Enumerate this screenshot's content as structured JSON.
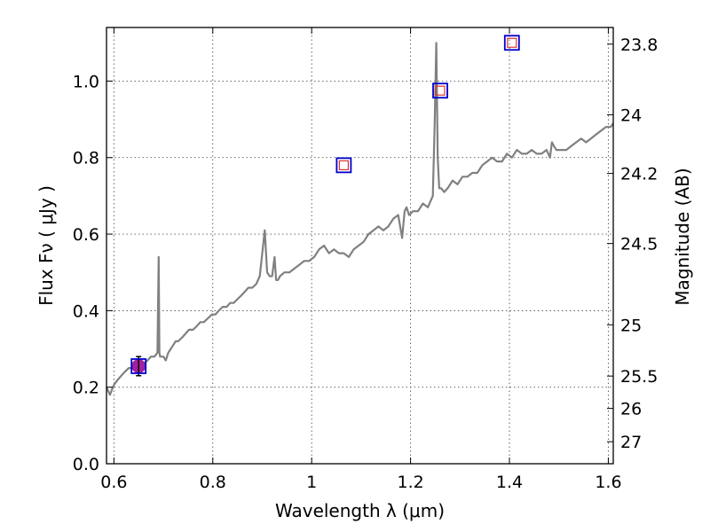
{
  "chart_data": {
    "type": "line",
    "xlabel": "Wavelength  λ (μm)",
    "ylabel": "Flux  Fν  ( μJy )",
    "y2label": "Magnitude (AB)",
    "xlim": [
      0.585,
      1.61
    ],
    "ylim": [
      0.0,
      1.14
    ],
    "x_ticks": [
      0.6,
      0.8,
      1.0,
      1.2,
      1.4,
      1.6
    ],
    "x_tick_labels": [
      "0.6",
      "0.8",
      "1",
      "1.2",
      "1.4",
      "1.6"
    ],
    "y_ticks": [
      0.0,
      0.2,
      0.4,
      0.6,
      0.8,
      1.0
    ],
    "y_tick_labels": [
      "0.0",
      "0.2",
      "0.4",
      "0.6",
      "0.8",
      "1.0"
    ],
    "y2_ticks": [
      {
        "label": "23.8",
        "mag": 23.8
      },
      {
        "label": "24",
        "mag": 24.0
      },
      {
        "label": "24.2",
        "mag": 24.2
      },
      {
        "label": "24.5",
        "mag": 24.5
      },
      {
        "label": "25",
        "mag": 25.0
      },
      {
        "label": "25.5",
        "mag": 25.5
      },
      {
        "label": "26",
        "mag": 26.0
      },
      {
        "label": "27",
        "mag": 27.0
      }
    ],
    "grid": true,
    "colors": {
      "spectrum": "#808080",
      "photometry_edge": "#0000cc",
      "photometry_inner": "#dd3333",
      "measured_fill": "#a020a0",
      "errorbar": "#000000"
    },
    "spectrum": {
      "x": [
        0.585,
        0.592,
        0.598,
        0.602,
        0.608,
        0.615,
        0.622,
        0.63,
        0.638,
        0.645,
        0.652,
        0.66,
        0.668,
        0.675,
        0.682,
        0.688,
        0.6905,
        0.692,
        0.6935,
        0.696,
        0.7,
        0.705,
        0.71,
        0.715,
        0.72,
        0.725,
        0.73,
        0.738,
        0.745,
        0.752,
        0.76,
        0.768,
        0.775,
        0.782,
        0.79,
        0.798,
        0.805,
        0.812,
        0.82,
        0.828,
        0.835,
        0.842,
        0.85,
        0.858,
        0.865,
        0.872,
        0.88,
        0.888,
        0.895,
        0.9,
        0.905,
        0.91,
        0.915,
        0.92,
        0.925,
        0.928,
        0.932,
        0.936,
        0.945,
        0.955,
        0.965,
        0.975,
        0.985,
        0.995,
        1.005,
        1.015,
        1.025,
        1.035,
        1.045,
        1.055,
        1.065,
        1.075,
        1.085,
        1.095,
        1.105,
        1.115,
        1.125,
        1.135,
        1.145,
        1.155,
        1.165,
        1.175,
        1.183,
        1.188,
        1.192,
        1.197,
        1.205,
        1.215,
        1.225,
        1.235,
        1.245,
        1.249,
        1.252,
        1.255,
        1.258,
        1.262,
        1.268,
        1.275,
        1.285,
        1.295,
        1.305,
        1.315,
        1.325,
        1.335,
        1.345,
        1.355,
        1.365,
        1.375,
        1.385,
        1.395,
        1.405,
        1.415,
        1.425,
        1.435,
        1.445,
        1.455,
        1.465,
        1.475,
        1.482,
        1.486,
        1.49,
        1.495,
        1.505,
        1.515,
        1.525,
        1.535,
        1.545,
        1.555,
        1.565,
        1.575,
        1.585,
        1.595,
        1.605,
        1.61
      ],
      "y": [
        0.2,
        0.18,
        0.2,
        0.21,
        0.22,
        0.23,
        0.24,
        0.25,
        0.25,
        0.26,
        0.25,
        0.26,
        0.27,
        0.28,
        0.28,
        0.29,
        0.54,
        0.29,
        0.28,
        0.28,
        0.28,
        0.27,
        0.29,
        0.3,
        0.31,
        0.32,
        0.32,
        0.33,
        0.34,
        0.35,
        0.35,
        0.36,
        0.37,
        0.37,
        0.38,
        0.39,
        0.39,
        0.4,
        0.41,
        0.41,
        0.42,
        0.42,
        0.43,
        0.44,
        0.45,
        0.46,
        0.46,
        0.47,
        0.49,
        0.55,
        0.61,
        0.5,
        0.49,
        0.49,
        0.54,
        0.48,
        0.48,
        0.49,
        0.5,
        0.5,
        0.51,
        0.52,
        0.53,
        0.53,
        0.54,
        0.56,
        0.57,
        0.55,
        0.56,
        0.55,
        0.55,
        0.54,
        0.56,
        0.57,
        0.58,
        0.6,
        0.61,
        0.62,
        0.61,
        0.62,
        0.64,
        0.65,
        0.59,
        0.66,
        0.67,
        0.65,
        0.66,
        0.66,
        0.68,
        0.67,
        0.7,
        0.9,
        1.1,
        0.8,
        0.72,
        0.72,
        0.71,
        0.72,
        0.74,
        0.73,
        0.75,
        0.75,
        0.76,
        0.76,
        0.78,
        0.79,
        0.8,
        0.79,
        0.79,
        0.81,
        0.8,
        0.82,
        0.81,
        0.81,
        0.82,
        0.81,
        0.81,
        0.82,
        0.8,
        0.84,
        0.83,
        0.82,
        0.82,
        0.82,
        0.83,
        0.84,
        0.85,
        0.84,
        0.85,
        0.86,
        0.87,
        0.88,
        0.88,
        0.89
      ],
      "linewidth": 2.2
    },
    "photometry": [
      {
        "x": 0.65,
        "y": 0.255,
        "measured": true,
        "yerr": 0.025
      },
      {
        "x": 1.065,
        "y": 0.78,
        "measured": false
      },
      {
        "x": 1.26,
        "y": 0.975,
        "measured": false
      },
      {
        "x": 1.405,
        "y": 1.1,
        "measured": false
      }
    ]
  }
}
